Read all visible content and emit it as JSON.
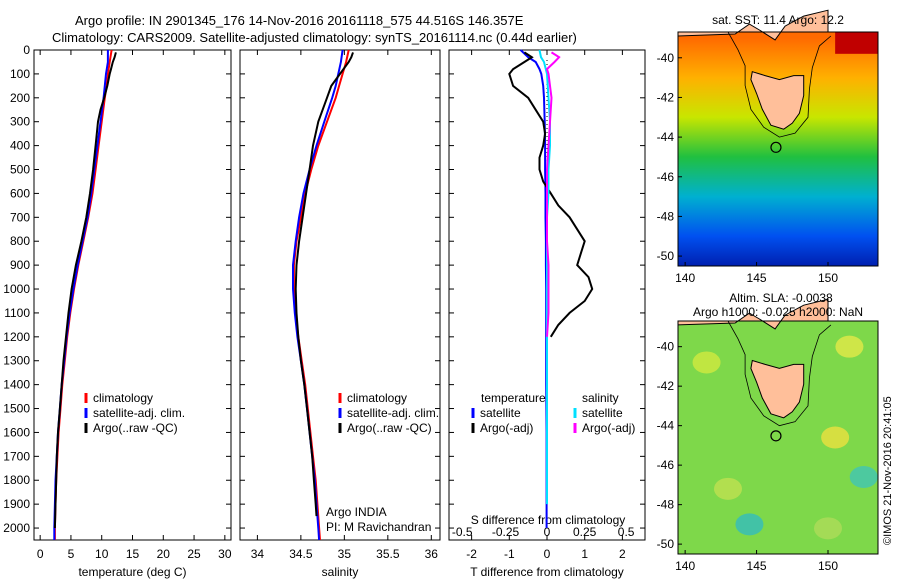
{
  "header": {
    "line1": "Argo profile: IN 2901345_176 14-Nov-2016 20161118_575 44.516S 146.357E",
    "line2": "Climatology: CARS2009. Satellite-adjusted climatology: synTS_20161114.nc (0.44d earlier)"
  },
  "credit": "©IMOS 21-Nov-2016 20:41:05",
  "colors": {
    "climatology": "#ff0000",
    "satellite": "#0000ff",
    "argo": "#000000",
    "salinity_satellite": "#00e0ff",
    "salinity_argo": "#ff00ff",
    "land": "#ffbf9a"
  },
  "chart_data": [
    {
      "id": "temperature",
      "type": "line",
      "xlabel": "temperature (deg C)",
      "ylabel": "",
      "xlim": [
        -1,
        31
      ],
      "ylim": [
        2050,
        0
      ],
      "xticks": [
        0,
        5,
        10,
        15,
        20,
        25,
        30
      ],
      "yticks": [
        0,
        100,
        200,
        300,
        400,
        500,
        600,
        700,
        800,
        900,
        1000,
        1100,
        1200,
        1300,
        1400,
        1500,
        1600,
        1700,
        1800,
        1900,
        2000
      ],
      "legend": [
        "climatology",
        "satellite-adj. clim.",
        "Argo(..raw -QC)"
      ],
      "series": [
        {
          "name": "climatology",
          "color": "#ff0000",
          "y": [
            0,
            50,
            100,
            150,
            200,
            300,
            400,
            500,
            600,
            700,
            800,
            900,
            1000,
            1100,
            1200,
            1300,
            1400,
            1500,
            1600,
            1700,
            1800,
            1900,
            2000,
            2050
          ],
          "x": [
            11.6,
            11.3,
            11.0,
            10.8,
            10.5,
            10.0,
            9.5,
            9.0,
            8.5,
            7.8,
            7.0,
            6.2,
            5.5,
            4.9,
            4.4,
            4.0,
            3.6,
            3.3,
            3.0,
            2.8,
            2.6,
            2.5,
            2.4,
            2.4
          ]
        },
        {
          "name": "satellite-adj. clim.",
          "color": "#0000ff",
          "y": [
            0,
            50,
            100,
            150,
            200,
            300,
            400,
            500,
            600,
            700,
            800,
            900,
            1000,
            1100,
            1200,
            1300,
            1400,
            1500,
            1600,
            1700,
            1800,
            1900,
            2000,
            2050
          ],
          "x": [
            11.0,
            11.0,
            10.7,
            10.5,
            10.3,
            9.8,
            9.3,
            8.8,
            8.3,
            7.7,
            6.9,
            6.1,
            5.4,
            4.8,
            4.3,
            3.9,
            3.5,
            3.2,
            2.9,
            2.7,
            2.5,
            2.4,
            2.3,
            2.3
          ]
        },
        {
          "name": "Argo(..raw -QC)",
          "color": "#000000",
          "y": [
            10,
            30,
            50,
            80,
            100,
            150,
            200,
            250,
            300,
            400,
            500,
            600,
            700,
            800,
            900,
            1000,
            1100,
            1200,
            1300,
            1400,
            1500,
            1600,
            1700,
            1800,
            1900,
            2000
          ],
          "x": [
            12.3,
            12.1,
            11.8,
            11.5,
            11.3,
            10.9,
            10.4,
            9.8,
            9.4,
            9.0,
            8.6,
            8.1,
            7.5,
            6.7,
            5.8,
            5.1,
            4.6,
            4.2,
            3.8,
            3.5,
            3.2,
            2.9,
            2.7,
            2.6,
            2.5,
            2.4
          ]
        }
      ]
    },
    {
      "id": "salinity",
      "type": "line",
      "xlabel": "salinity",
      "ylabel": "",
      "xlim": [
        33.8,
        36.1
      ],
      "ylim": [
        2050,
        0
      ],
      "xticks": [
        34,
        34.5,
        35,
        35.5,
        36
      ],
      "legend": [
        "climatology",
        "satellite-adj. clim.",
        "Argo(..raw -QC)"
      ],
      "annotations": [
        "Argo INDIA",
        "PI: M Ravichandran"
      ],
      "series": [
        {
          "name": "climatology",
          "color": "#ff0000",
          "y": [
            0,
            50,
            100,
            150,
            200,
            300,
            400,
            500,
            600,
            700,
            800,
            900,
            1000,
            1100,
            1200,
            1300,
            1400,
            1500,
            1600,
            1700,
            1800,
            1900,
            2000,
            2050
          ],
          "x": [
            35.05,
            35.02,
            34.98,
            34.94,
            34.9,
            34.8,
            34.7,
            34.62,
            34.55,
            34.5,
            34.45,
            34.42,
            34.42,
            34.44,
            34.47,
            34.51,
            34.55,
            34.58,
            34.61,
            34.64,
            34.67,
            34.69,
            34.71,
            34.72
          ]
        },
        {
          "name": "satellite-adj. clim.",
          "color": "#0000ff",
          "y": [
            0,
            50,
            100,
            150,
            200,
            300,
            400,
            500,
            600,
            700,
            800,
            900,
            1000,
            1100,
            1200,
            1300,
            1400,
            1500,
            1600,
            1700,
            1800,
            1900,
            2000,
            2050
          ],
          "x": [
            34.98,
            34.96,
            34.93,
            34.9,
            34.86,
            34.77,
            34.68,
            34.6,
            34.53,
            34.48,
            34.44,
            34.41,
            34.41,
            34.43,
            34.46,
            34.5,
            34.54,
            34.57,
            34.6,
            34.63,
            34.66,
            34.68,
            34.7,
            34.71
          ]
        },
        {
          "name": "Argo(..raw -QC)",
          "color": "#000000",
          "y": [
            10,
            30,
            50,
            100,
            150,
            200,
            300,
            400,
            500,
            600,
            700,
            800,
            900,
            1000,
            1100,
            1200,
            1300,
            1400,
            1500,
            1600,
            1700,
            1800,
            1900,
            1950
          ],
          "x": [
            35.1,
            35.08,
            35.05,
            34.95,
            34.85,
            34.8,
            34.7,
            34.64,
            34.6,
            34.56,
            34.52,
            34.48,
            34.45,
            34.44,
            34.45,
            34.47,
            34.5,
            34.54,
            34.57,
            34.6,
            34.63,
            34.65,
            34.67,
            34.68
          ]
        }
      ]
    },
    {
      "id": "difference",
      "type": "line",
      "xlabel": "T difference from climatology",
      "top_axis_label": "S difference from climatology",
      "xlim": [
        -2.6,
        2.6
      ],
      "ylim": [
        2050,
        0
      ],
      "xticks": [
        -2,
        -1,
        0,
        1,
        2
      ],
      "top_ticks": [
        -0.5,
        -0.25,
        0,
        0.25,
        0.5
      ],
      "legend_temperature": [
        "temperature",
        "satellite",
        "Argo(-adj)"
      ],
      "legend_salinity": [
        "salinity",
        "satellite",
        "Argo(-adj)"
      ],
      "series": [
        {
          "name": "temperature satellite",
          "color": "#0000ff",
          "y": [
            0,
            30,
            50,
            80,
            100,
            150,
            200,
            300,
            400,
            500,
            600,
            700,
            800,
            900,
            1000,
            1200,
            1400,
            1600,
            1800,
            2000
          ],
          "x": [
            -0.7,
            -0.5,
            -0.3,
            -0.2,
            -0.15,
            -0.1,
            -0.08,
            -0.06,
            -0.05,
            -0.05,
            -0.04,
            -0.04,
            -0.03,
            -0.03,
            -0.02,
            -0.02,
            -0.02,
            -0.01,
            -0.01,
            -0.01
          ]
        },
        {
          "name": "temperature Argo(-adj)",
          "color": "#000000",
          "y": [
            10,
            30,
            50,
            80,
            100,
            150,
            200,
            250,
            300,
            350,
            400,
            450,
            500,
            550,
            600,
            650,
            700,
            750,
            800,
            850,
            900,
            950,
            1000,
            1050,
            1100,
            1150,
            1200
          ],
          "x": [
            -0.6,
            -0.4,
            -0.6,
            -0.9,
            -1.0,
            -0.9,
            -0.5,
            -0.3,
            -0.1,
            -0.05,
            -0.1,
            -0.2,
            -0.2,
            -0.1,
            0.1,
            0.3,
            0.6,
            0.8,
            1.0,
            0.9,
            0.8,
            1.1,
            1.2,
            1.0,
            0.6,
            0.3,
            0.1
          ]
        },
        {
          "name": "salinity satellite",
          "color": "#00e0ff",
          "y": [
            0,
            30,
            50,
            100,
            200,
            300,
            400,
            500,
            600,
            700,
            800,
            900,
            1000,
            1100,
            1200,
            1300,
            1400,
            1500,
            1600,
            1700,
            1800,
            1900
          ],
          "x": [
            -0.05,
            -0.04,
            -0.02,
            0.0,
            0.01,
            0.02,
            0.02,
            0.01,
            0.01,
            0.0,
            0.0,
            0.0,
            0.0,
            0.0,
            0.0,
            0.0,
            0.0,
            0.0,
            0.0,
            0.0,
            0.0,
            0.0
          ]
        },
        {
          "name": "salinity Argo(-adj)",
          "color": "#ff00ff",
          "y": [
            10,
            30,
            50,
            80,
            100,
            150,
            200,
            300,
            400,
            500,
            600,
            700,
            800,
            900,
            1000,
            1100,
            1200
          ],
          "x": [
            0.03,
            0.08,
            0.05,
            0.0,
            0.01,
            0.02,
            0.03,
            0.02,
            0.01,
            0.0,
            0.0,
            0.0,
            0.0,
            0.01,
            0.01,
            0.01,
            0.0
          ]
        }
      ]
    },
    {
      "id": "sst-map",
      "type": "heatmap",
      "title": "sat. SST: 11.4 Argo: 12.2",
      "xlim": [
        139.5,
        153.5
      ],
      "ylim": [
        -50.5,
        -38.7
      ],
      "xticks": [
        140,
        145,
        150
      ],
      "yticks": [
        -40,
        -42,
        -44,
        -46,
        -48,
        -50
      ],
      "profile_marker": {
        "lon": 146.357,
        "lat": -44.516
      },
      "field_gradient": [
        {
          "lat": -39,
          "color": "#ff6a00"
        },
        {
          "lat": -41,
          "color": "#ffb000"
        },
        {
          "lat": -43,
          "color": "#c8e600"
        },
        {
          "lat": -45,
          "color": "#20c040"
        },
        {
          "lat": -47,
          "color": "#00b0d0"
        },
        {
          "lat": -49,
          "color": "#0050f0"
        },
        {
          "lat": -50.5,
          "color": "#0020b0"
        }
      ]
    },
    {
      "id": "sla-map",
      "type": "heatmap",
      "title": "Altim. SLA: -0.0038",
      "subtitle": "Argo h1000: -0.025 h2000: NaN",
      "xlim": [
        139.5,
        153.5
      ],
      "ylim": [
        -50.5,
        -38.7
      ],
      "xticks": [
        140,
        145,
        150
      ],
      "yticks": [
        -40,
        -42,
        -44,
        -46,
        -48,
        -50
      ],
      "profile_marker": {
        "lon": 146.357,
        "lat": -44.516
      },
      "field_color": "#7ed84a"
    }
  ]
}
